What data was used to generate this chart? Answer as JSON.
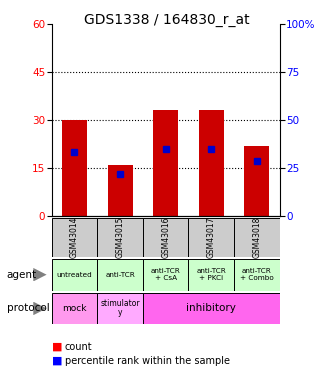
{
  "title": "GDS1338 / 164830_r_at",
  "samples": [
    "GSM43014",
    "GSM43015",
    "GSM43016",
    "GSM43017",
    "GSM43018"
  ],
  "bar_tops": [
    30,
    16,
    33,
    33,
    22
  ],
  "percentile_values": [
    20,
    13,
    21,
    21,
    17
  ],
  "bar_color": "#cc0000",
  "percentile_color": "#0000cc",
  "ylim_left": [
    0,
    60
  ],
  "ylim_right": [
    0,
    100
  ],
  "yticks_left": [
    0,
    15,
    30,
    45,
    60
  ],
  "yticks_right": [
    0,
    25,
    50,
    75,
    100
  ],
  "agent_labels": [
    "untreated",
    "anti-TCR",
    "anti-TCR\n+ CsA",
    "anti-TCR\n+ PKCi",
    "anti-TCR\n+ Combo"
  ],
  "agent_bg": "#ccffcc",
  "protocol_mock_bg": "#ff99ee",
  "protocol_stim_bg": "#ffccff",
  "protocol_inhib_bg": "#ff66ee",
  "sample_bg": "#cccccc",
  "title_fontsize": 10,
  "tick_fontsize": 7.5,
  "bar_width": 0.55
}
